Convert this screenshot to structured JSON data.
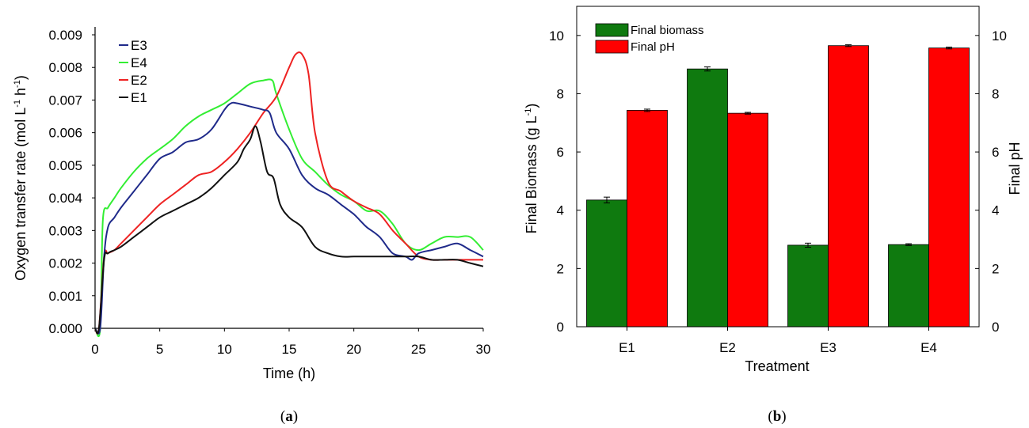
{
  "panel_a": {
    "caption_open": "(",
    "caption_letter": "a",
    "caption_close": ")",
    "ylabel": "Oxygen transfer rate (mol L",
    "ylabel_sup1": "-1",
    "ylabel_mid": " h",
    "ylabel_sup2": "-1",
    "ylabel_end": ")",
    "xlabel": "Time (h)",
    "legend_order": [
      "E3",
      "E4",
      "E2",
      "E1"
    ]
  },
  "panel_b": {
    "caption_open": "(",
    "caption_letter": "b",
    "caption_close": ")",
    "ylabel_left": "Final Biomass (g L",
    "ylabel_left_sup": "-1",
    "ylabel_left_end": ")",
    "ylabel_right": "Final pH",
    "xlabel": "Treatment"
  },
  "chart_data": [
    {
      "type": "line",
      "title": "",
      "xlabel": "Time (h)",
      "ylabel": "Oxygen transfer rate (mol L-1 h-1)",
      "xlim": [
        0,
        30
      ],
      "ylim": [
        0,
        0.009
      ],
      "xticks": [
        "0",
        "5",
        "10",
        "15",
        "20",
        "25",
        "30"
      ],
      "yticks": [
        "0.000",
        "0.001",
        "0.002",
        "0.003",
        "0.004",
        "0.005",
        "0.006",
        "0.007",
        "0.008",
        "0.009"
      ],
      "grid": false,
      "legend_position": "top-left",
      "colors": {
        "E3": "#1f2a8a",
        "E4": "#33ee33",
        "E2": "#ee2222",
        "E1": "#111111"
      },
      "series": [
        {
          "name": "E3",
          "x": [
            0,
            0.4,
            0.7,
            1,
            1.5,
            2,
            3,
            4,
            5,
            6,
            7,
            8,
            9,
            10,
            10.5,
            11,
            12,
            13,
            13.5,
            14,
            15,
            16,
            17,
            18,
            19,
            20,
            20.5,
            21,
            22,
            23,
            24,
            24.5,
            25,
            26,
            27,
            28,
            29,
            30
          ],
          "y": [
            0,
            0,
            0.0022,
            0.0031,
            0.0034,
            0.0037,
            0.0042,
            0.0047,
            0.0052,
            0.0054,
            0.0057,
            0.0058,
            0.0061,
            0.0067,
            0.0069,
            0.0069,
            0.0068,
            0.0067,
            0.0066,
            0.006,
            0.0055,
            0.0047,
            0.0043,
            0.0041,
            0.0038,
            0.0035,
            0.0033,
            0.0031,
            0.0028,
            0.0023,
            0.0022,
            0.0021,
            0.0023,
            0.0024,
            0.0025,
            0.0026,
            0.0024,
            0.0022
          ]
        },
        {
          "name": "E4",
          "x": [
            0,
            0.4,
            0.6,
            1,
            1.5,
            2,
            3,
            4,
            5,
            6,
            7,
            8,
            9,
            10,
            11,
            12,
            13,
            13.7,
            14,
            15,
            16,
            17,
            18,
            19,
            20,
            21,
            22,
            23,
            24,
            25,
            26,
            27,
            28,
            29,
            30
          ],
          "y": [
            0,
            0,
            0.0033,
            0.0037,
            0.004,
            0.0043,
            0.0048,
            0.0052,
            0.0055,
            0.0058,
            0.0062,
            0.0065,
            0.0067,
            0.0069,
            0.0072,
            0.0075,
            0.0076,
            0.0076,
            0.0072,
            0.0061,
            0.0052,
            0.0048,
            0.0044,
            0.0041,
            0.0039,
            0.0036,
            0.0036,
            0.0032,
            0.0026,
            0.0024,
            0.0026,
            0.0028,
            0.0028,
            0.0028,
            0.0024
          ]
        },
        {
          "name": "E2",
          "x": [
            0,
            0.3,
            0.7,
            1,
            1.5,
            2,
            3,
            4,
            5,
            6,
            7,
            8,
            9,
            10,
            11,
            12,
            13,
            14,
            15,
            15.5,
            16,
            16.5,
            17,
            18,
            19,
            20,
            21,
            22,
            23,
            24,
            25,
            26,
            27,
            28,
            29,
            30
          ],
          "y": [
            0,
            0,
            0.0022,
            0.0023,
            0.0024,
            0.0026,
            0.003,
            0.0034,
            0.0038,
            0.0041,
            0.0044,
            0.0047,
            0.0048,
            0.0051,
            0.0055,
            0.006,
            0.0066,
            0.0071,
            0.008,
            0.0084,
            0.0084,
            0.0078,
            0.006,
            0.0045,
            0.0042,
            0.0039,
            0.0037,
            0.0035,
            0.003,
            0.0026,
            0.0022,
            0.0021,
            0.0021,
            0.0021,
            0.0021,
            0.0021
          ]
        },
        {
          "name": "E1",
          "x": [
            0,
            0.3,
            0.7,
            1,
            1.5,
            2,
            3,
            4,
            5,
            6,
            7,
            8,
            9,
            10,
            11,
            11.5,
            12,
            12.4,
            12.8,
            13.3,
            13.8,
            14.3,
            15,
            16,
            17,
            18,
            19,
            20,
            21,
            22,
            23,
            24,
            25,
            26,
            27,
            28,
            29,
            30
          ],
          "y": [
            0,
            0,
            0.0021,
            0.0023,
            0.0024,
            0.0025,
            0.0028,
            0.0031,
            0.0034,
            0.0036,
            0.0038,
            0.004,
            0.0043,
            0.0047,
            0.0051,
            0.0055,
            0.0058,
            0.0062,
            0.0057,
            0.0048,
            0.0046,
            0.0038,
            0.0034,
            0.0031,
            0.0025,
            0.0023,
            0.0022,
            0.0022,
            0.0022,
            0.0022,
            0.0022,
            0.0022,
            0.0022,
            0.0021,
            0.0021,
            0.0021,
            0.002,
            0.0019
          ]
        }
      ]
    },
    {
      "type": "bar",
      "title": "",
      "xlabel": "Treatment",
      "ylabel": "Final Biomass (g L-1)",
      "ylabel_right": "Final pH",
      "categories": [
        "E1",
        "E2",
        "E3",
        "E4"
      ],
      "ylim": [
        0,
        11
      ],
      "yticks": [
        "0",
        "2",
        "4",
        "6",
        "8",
        "10"
      ],
      "y2lim": [
        0,
        11
      ],
      "y2ticks": [
        "0",
        "2",
        "4",
        "6",
        "8",
        "10"
      ],
      "grid": false,
      "legend_position": "top-left",
      "series": [
        {
          "name": "Final biomass",
          "axis": "left",
          "color": "#0f7a0f",
          "values": [
            4.35,
            8.85,
            2.8,
            2.82
          ],
          "errors": [
            0.1,
            0.07,
            0.07,
            0.03
          ]
        },
        {
          "name": "Final pH",
          "axis": "right",
          "color": "#ff0000",
          "values": [
            7.43,
            7.33,
            9.65,
            9.57
          ],
          "errors": [
            0.04,
            0.03,
            0.03,
            0.03
          ]
        }
      ]
    }
  ]
}
